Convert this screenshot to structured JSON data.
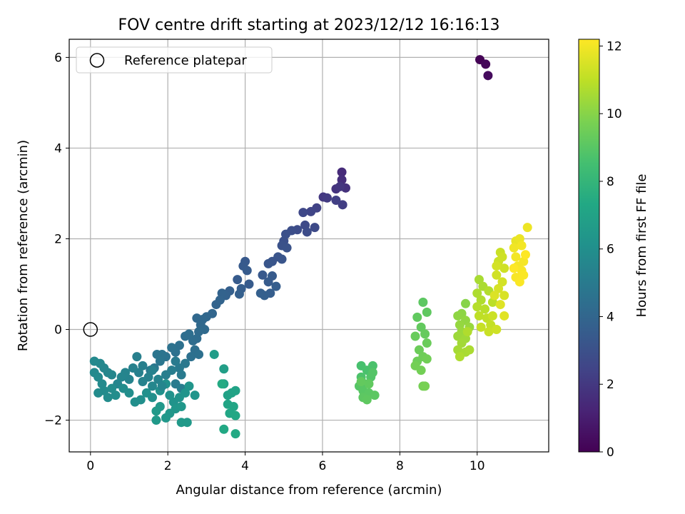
{
  "chart_data": {
    "type": "scatter",
    "title": "FOV centre drift starting at 2023/12/12 16:16:13",
    "xlabel": "Angular distance from reference (arcmin)",
    "ylabel": "Rotation from reference (arcmin)",
    "xlim": [
      -0.55,
      11.85
    ],
    "ylim": [
      -2.7,
      6.4
    ],
    "xticks": [
      0,
      2,
      4,
      6,
      8,
      10
    ],
    "yticks": [
      -2,
      0,
      2,
      4,
      6
    ],
    "grid": true,
    "legend": {
      "placement": "top-left",
      "entries": [
        "Reference platepar"
      ]
    },
    "reference_point": {
      "x": 0,
      "y": 0,
      "label": "Reference platepar"
    },
    "colorbar": {
      "label": "Hours from first FF file",
      "range": [
        0,
        12.2
      ],
      "ticks": [
        0,
        2,
        4,
        6,
        8,
        10,
        12
      ],
      "colormap": "viridis"
    },
    "points": [
      [
        10.07,
        5.95,
        0.05
      ],
      [
        10.22,
        5.85,
        0.2
      ],
      [
        10.28,
        5.6,
        0.35
      ],
      [
        6.5,
        3.47,
        1.5
      ],
      [
        6.5,
        3.3,
        1.6
      ],
      [
        6.6,
        3.12,
        1.7
      ],
      [
        6.35,
        3.1,
        1.8
      ],
      [
        6.45,
        3.15,
        1.9
      ],
      [
        6.02,
        2.92,
        2.0
      ],
      [
        6.12,
        2.9,
        2.1
      ],
      [
        6.52,
        2.75,
        2.2
      ],
      [
        6.35,
        2.85,
        2.3
      ],
      [
        5.85,
        2.68,
        2.4
      ],
      [
        5.7,
        2.6,
        2.5
      ],
      [
        5.5,
        2.58,
        2.6
      ],
      [
        5.55,
        2.3,
        2.7
      ],
      [
        5.35,
        2.2,
        2.8
      ],
      [
        5.2,
        2.18,
        2.9
      ],
      [
        5.05,
        2.1,
        3.0
      ],
      [
        5.6,
        2.15,
        2.8
      ],
      [
        5.8,
        2.25,
        2.7
      ],
      [
        5.0,
        1.95,
        3.0
      ],
      [
        4.95,
        1.85,
        3.05
      ],
      [
        5.08,
        1.8,
        3.1
      ],
      [
        4.85,
        1.6,
        3.2
      ],
      [
        4.7,
        1.5,
        3.2
      ],
      [
        4.6,
        1.45,
        3.25
      ],
      [
        4.95,
        1.55,
        3.2
      ],
      [
        4.0,
        1.5,
        3.4
      ],
      [
        3.95,
        1.4,
        3.45
      ],
      [
        4.05,
        1.3,
        3.5
      ],
      [
        3.8,
        1.1,
        3.5
      ],
      [
        4.1,
        1.0,
        3.5
      ],
      [
        4.45,
        1.2,
        3.4
      ],
      [
        4.6,
        1.05,
        3.5
      ],
      [
        4.7,
        1.18,
        3.5
      ],
      [
        4.8,
        0.95,
        3.6
      ],
      [
        4.65,
        0.8,
        3.6
      ],
      [
        4.5,
        0.75,
        3.7
      ],
      [
        4.4,
        0.8,
        3.7
      ],
      [
        3.9,
        0.9,
        3.6
      ],
      [
        3.85,
        0.78,
        3.7
      ],
      [
        3.6,
        0.85,
        3.7
      ],
      [
        3.5,
        0.75,
        3.8
      ],
      [
        3.4,
        0.8,
        3.85
      ],
      [
        3.25,
        0.55,
        3.9
      ],
      [
        3.35,
        0.65,
        3.9
      ],
      [
        3.15,
        0.35,
        4.0
      ],
      [
        3.0,
        0.28,
        4.05
      ],
      [
        2.9,
        0.22,
        4.1
      ],
      [
        2.75,
        0.25,
        4.1
      ],
      [
        2.85,
        0.1,
        4.15
      ],
      [
        2.95,
        0.0,
        4.2
      ],
      [
        2.8,
        -0.05,
        4.25
      ],
      [
        2.75,
        -0.2,
        4.3
      ],
      [
        2.65,
        -0.25,
        4.35
      ],
      [
        2.55,
        -0.1,
        4.4
      ],
      [
        2.45,
        -0.15,
        4.4
      ],
      [
        2.7,
        -0.45,
        4.45
      ],
      [
        2.6,
        -0.6,
        4.5
      ],
      [
        2.8,
        -0.55,
        4.5
      ],
      [
        2.3,
        -0.35,
        4.5
      ],
      [
        2.2,
        -0.5,
        4.55
      ],
      [
        2.1,
        -0.4,
        4.6
      ],
      [
        1.95,
        -0.6,
        4.65
      ],
      [
        1.85,
        -0.55,
        4.7
      ],
      [
        1.72,
        -0.55,
        4.75
      ],
      [
        1.8,
        -0.7,
        4.8
      ],
      [
        1.65,
        -0.85,
        4.85
      ],
      [
        1.55,
        -0.9,
        4.9
      ],
      [
        2.45,
        -0.75,
        4.9
      ],
      [
        2.3,
        -0.85,
        4.95
      ],
      [
        2.2,
        -0.7,
        5.0
      ],
      [
        2.35,
        -1.0,
        5.0
      ],
      [
        2.2,
        -1.2,
        5.05
      ],
      [
        2.35,
        -1.3,
        5.1
      ],
      [
        2.1,
        -0.9,
        5.1
      ],
      [
        1.95,
        -1.0,
        5.15
      ],
      [
        1.35,
        -0.8,
        5.2
      ],
      [
        1.2,
        -0.6,
        5.2
      ],
      [
        1.25,
        -0.95,
        5.25
      ],
      [
        1.1,
        -0.85,
        5.3
      ],
      [
        1.5,
        -1.05,
        5.3
      ],
      [
        1.35,
        -1.15,
        5.35
      ],
      [
        1.0,
        -1.1,
        5.4
      ],
      [
        0.9,
        -0.95,
        5.45
      ],
      [
        0.8,
        -1.05,
        5.5
      ],
      [
        0.7,
        -1.2,
        5.5
      ],
      [
        0.55,
        -1.0,
        5.55
      ],
      [
        0.45,
        -0.95,
        5.6
      ],
      [
        0.35,
        -0.85,
        5.6
      ],
      [
        0.25,
        -0.75,
        5.65
      ],
      [
        0.1,
        -0.7,
        5.7
      ],
      [
        0.1,
        -0.95,
        5.7
      ],
      [
        0.2,
        -1.05,
        5.75
      ],
      [
        0.3,
        -1.2,
        5.75
      ],
      [
        0.2,
        -1.4,
        5.8
      ],
      [
        0.35,
        -1.35,
        5.8
      ],
      [
        0.45,
        -1.5,
        5.85
      ],
      [
        0.55,
        -1.3,
        5.85
      ],
      [
        0.65,
        -1.45,
        5.9
      ],
      [
        0.85,
        -1.3,
        5.9
      ],
      [
        1.0,
        -1.4,
        5.95
      ],
      [
        1.15,
        -1.6,
        6.0
      ],
      [
        1.3,
        -1.55,
        6.0
      ],
      [
        1.45,
        -1.4,
        6.05
      ],
      [
        1.6,
        -1.5,
        6.05
      ],
      [
        1.8,
        -1.35,
        6.1
      ],
      [
        1.95,
        -1.2,
        6.1
      ],
      [
        2.05,
        -1.45,
        6.15
      ],
      [
        2.15,
        -1.6,
        6.2
      ],
      [
        2.3,
        -1.5,
        6.2
      ],
      [
        2.45,
        -1.4,
        6.25
      ],
      [
        2.55,
        -1.25,
        6.3
      ],
      [
        2.7,
        -1.45,
        6.3
      ],
      [
        2.2,
        -1.75,
        6.35
      ],
      [
        2.35,
        -1.7,
        6.4
      ],
      [
        2.05,
        -1.85,
        6.4
      ],
      [
        1.95,
        -1.95,
        6.45
      ],
      [
        1.8,
        -1.7,
        6.45
      ],
      [
        1.7,
        -1.8,
        6.5
      ],
      [
        1.7,
        -2.0,
        6.5
      ],
      [
        2.35,
        -2.05,
        6.55
      ],
      [
        2.5,
        -2.05,
        6.55
      ],
      [
        1.6,
        -0.9,
        5.3
      ],
      [
        1.75,
        -1.1,
        5.4
      ],
      [
        1.85,
        -1.25,
        5.5
      ],
      [
        1.6,
        -1.25,
        5.6
      ],
      [
        3.2,
        -0.55,
        6.7
      ],
      [
        3.45,
        -0.87,
        6.8
      ],
      [
        3.45,
        -1.2,
        6.9
      ],
      [
        3.55,
        -1.45,
        6.95
      ],
      [
        3.65,
        -1.4,
        7.0
      ],
      [
        3.75,
        -1.35,
        7.05
      ],
      [
        3.55,
        -1.65,
        7.1
      ],
      [
        3.7,
        -1.7,
        7.15
      ],
      [
        3.6,
        -1.85,
        7.2
      ],
      [
        3.75,
        -1.9,
        7.25
      ],
      [
        3.45,
        -2.2,
        7.3
      ],
      [
        3.75,
        -2.3,
        7.35
      ],
      [
        3.4,
        -1.2,
        7.4
      ],
      [
        7.0,
        -0.8,
        8.6
      ],
      [
        7.15,
        -0.9,
        8.65
      ],
      [
        7.3,
        -0.8,
        8.7
      ],
      [
        7.0,
        -1.05,
        8.75
      ],
      [
        7.1,
        -1.2,
        8.8
      ],
      [
        7.25,
        -1.05,
        8.85
      ],
      [
        7.3,
        -0.95,
        8.9
      ],
      [
        6.95,
        -1.25,
        8.95
      ],
      [
        7.05,
        -1.35,
        9.0
      ],
      [
        7.2,
        -1.4,
        9.05
      ],
      [
        7.35,
        -1.45,
        9.1
      ],
      [
        7.05,
        -1.5,
        9.1
      ],
      [
        7.15,
        -1.55,
        9.15
      ],
      [
        7.2,
        -1.2,
        9.2
      ],
      [
        7.0,
        -1.15,
        9.25
      ],
      [
        8.6,
        0.6,
        9.1
      ],
      [
        8.7,
        0.38,
        9.15
      ],
      [
        8.45,
        0.27,
        9.2
      ],
      [
        8.55,
        0.05,
        9.25
      ],
      [
        8.65,
        -0.1,
        9.3
      ],
      [
        8.4,
        -0.15,
        9.35
      ],
      [
        8.7,
        -0.3,
        9.4
      ],
      [
        8.5,
        -0.45,
        9.45
      ],
      [
        8.6,
        -0.6,
        9.5
      ],
      [
        8.45,
        -0.7,
        9.5
      ],
      [
        8.7,
        -0.65,
        9.55
      ],
      [
        8.4,
        -0.8,
        9.6
      ],
      [
        8.55,
        -0.9,
        9.6
      ],
      [
        8.6,
        -1.25,
        9.65
      ],
      [
        8.65,
        -1.25,
        9.7
      ],
      [
        9.7,
        0.57,
        10.0
      ],
      [
        9.6,
        0.35,
        10.1
      ],
      [
        9.5,
        0.3,
        10.15
      ],
      [
        9.7,
        0.2,
        10.2
      ],
      [
        9.55,
        0.1,
        10.25
      ],
      [
        9.8,
        0.05,
        10.3
      ],
      [
        9.6,
        -0.05,
        10.35
      ],
      [
        9.5,
        -0.15,
        10.4
      ],
      [
        9.7,
        -0.2,
        10.45
      ],
      [
        9.6,
        -0.3,
        10.5
      ],
      [
        9.5,
        -0.45,
        10.55
      ],
      [
        9.7,
        -0.5,
        10.6
      ],
      [
        9.8,
        -0.45,
        10.65
      ],
      [
        9.55,
        -0.6,
        10.7
      ],
      [
        9.75,
        -0.05,
        10.75
      ],
      [
        10.05,
        1.1,
        10.6
      ],
      [
        10.15,
        0.95,
        10.65
      ],
      [
        10.0,
        0.8,
        10.7
      ],
      [
        10.1,
        0.65,
        10.75
      ],
      [
        10.3,
        0.85,
        10.8
      ],
      [
        10.0,
        0.5,
        10.85
      ],
      [
        10.2,
        0.45,
        10.9
      ],
      [
        10.4,
        0.6,
        10.95
      ],
      [
        10.05,
        0.3,
        11.0
      ],
      [
        10.25,
        0.25,
        11.05
      ],
      [
        10.35,
        0.1,
        11.1
      ],
      [
        10.1,
        0.05,
        11.15
      ],
      [
        10.3,
        -0.05,
        11.2
      ],
      [
        10.4,
        0.3,
        11.25
      ],
      [
        10.5,
        0.0,
        11.3
      ],
      [
        10.6,
        1.7,
        11.2
      ],
      [
        10.55,
        1.5,
        11.25
      ],
      [
        10.7,
        1.35,
        11.3
      ],
      [
        10.5,
        1.2,
        11.35
      ],
      [
        10.65,
        1.05,
        11.4
      ],
      [
        10.55,
        0.9,
        11.45
      ],
      [
        10.7,
        0.75,
        11.5
      ],
      [
        10.45,
        0.75,
        11.55
      ],
      [
        10.6,
        0.55,
        11.6
      ],
      [
        10.7,
        0.3,
        11.65
      ],
      [
        10.65,
        1.6,
        11.3
      ],
      [
        10.5,
        1.4,
        11.4
      ],
      [
        11.0,
        1.95,
        11.8
      ],
      [
        11.1,
        2.0,
        11.85
      ],
      [
        11.3,
        2.25,
        11.9
      ],
      [
        10.95,
        1.8,
        11.95
      ],
      [
        11.15,
        1.85,
        12.0
      ],
      [
        11.0,
        1.6,
        12.0
      ],
      [
        11.2,
        1.5,
        12.05
      ],
      [
        11.05,
        1.4,
        12.05
      ],
      [
        11.15,
        1.3,
        12.1
      ],
      [
        11.0,
        1.15,
        12.1
      ],
      [
        11.2,
        1.2,
        12.15
      ],
      [
        11.1,
        1.05,
        12.15
      ],
      [
        11.25,
        1.65,
        12.2
      ],
      [
        10.95,
        1.35,
        12.2
      ]
    ]
  }
}
